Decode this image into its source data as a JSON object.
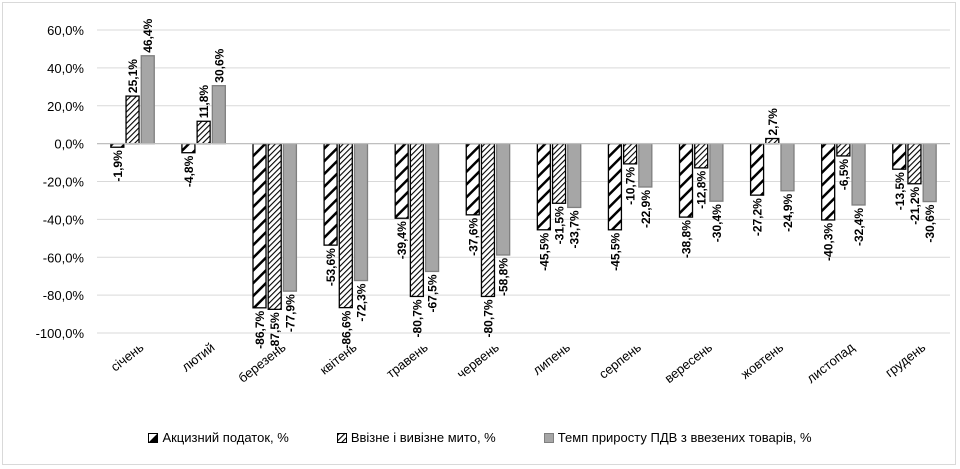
{
  "chart_data": {
    "type": "bar",
    "categories": [
      "січень",
      "лютий",
      "березень",
      "квітень",
      "травень",
      "червень",
      "липень",
      "серпень",
      "вересень",
      "жовтень",
      "листопад",
      "грудень"
    ],
    "series": [
      {
        "name": "Акцизний податок, %",
        "pattern": "light-diagonal",
        "values": [
          -1.9,
          -4.8,
          -86.7,
          -53.6,
          -39.4,
          -37.6,
          -45.5,
          -45.5,
          -38.8,
          -27.2,
          -40.3,
          -13.5
        ],
        "labels": [
          "-1,9%",
          "-4,8%",
          "-86,7%",
          "-53,6%",
          "-39,4%",
          "-37,6%",
          "-45,5%",
          "-45,5%",
          "-38,8%",
          "-27,2%",
          "-40,3%",
          "-13,5%"
        ]
      },
      {
        "name": "Ввізне і вивізне мито, %",
        "pattern": "dense-diagonal",
        "values": [
          25.1,
          11.8,
          -87.5,
          -86.6,
          -80.7,
          -80.7,
          -31.5,
          -10.7,
          -12.8,
          2.7,
          -6.5,
          -21.2
        ],
        "labels": [
          "25,1%",
          "11,8%",
          "-87,5%",
          "-86,6%",
          "-80,7%",
          "-80,7%",
          "-31,5%",
          "-10,7%",
          "-12,8%",
          "2,7%",
          "-6,5%",
          "-21,2%"
        ]
      },
      {
        "name": "Темп приросту ПДВ з ввезених товарів, %",
        "pattern": "solid-gray",
        "values": [
          46.4,
          30.6,
          -77.9,
          -72.3,
          -67.5,
          -58.8,
          -33.7,
          -22.9,
          -30.4,
          -24.9,
          -32.4,
          -30.6
        ],
        "labels": [
          "46,4%",
          "30,6%",
          "-77,9%",
          "-72,3%",
          "-67,5%",
          "-58,8%",
          "-33,7%",
          "-22,9%",
          "-30,4%",
          "-24,9%",
          "-32,4%",
          "-30,6%"
        ]
      }
    ],
    "ylim": [
      -100,
      60
    ],
    "yticks": [
      60,
      40,
      20,
      0,
      -20,
      -40,
      -60,
      -80,
      -100
    ],
    "ytick_labels": [
      "60,0%",
      "40,0%",
      "20,0%",
      "0,0%",
      "-20,0%",
      "-40,0%",
      "-60,0%",
      "-80,0%",
      "-100,0%"
    ],
    "grid": true,
    "legend_position": "bottom",
    "colors": {
      "gray_fill": "#a6a6a6",
      "outline": "#000000",
      "grid": "#d9d9d9",
      "axis": "#bfbfbf"
    }
  }
}
